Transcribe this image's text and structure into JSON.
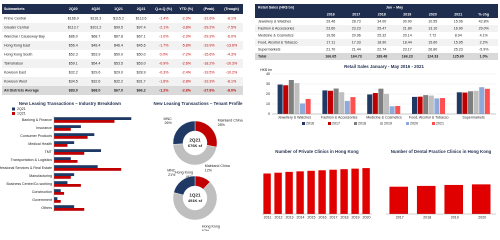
{
  "rent_table": {
    "header_color": "#1f2d4e",
    "stripe_color": "#f2f2f2",
    "total_color": "#d9d9d9",
    "percent_color": "#c00000",
    "columns": [
      "Submarkets",
      "2Q20",
      "4Q20",
      "1Q21",
      "2Q21",
      "Q-o-Q (%)",
      "YTD (%)",
      "(Peak)",
      "(Trough)"
    ],
    "rows": [
      [
        "Prime Central",
        "$166.0",
        "$116.3",
        "$115.2",
        "$113.6",
        "-1.4%",
        "-2.3%",
        "-31.6%",
        "-8.1%"
      ],
      [
        "Greater Central",
        "$113.7",
        "$101.2",
        "$99.5",
        "$97.4",
        "-2.1%",
        "-3.8%",
        "-29.2%",
        "-7.5%"
      ],
      [
        "Wanchai / Causeway Bay",
        "$86.0",
        "$68.7",
        "$67.8",
        "$67.1",
        "-1.0%",
        "-2.3%",
        "-29.3%",
        "-6.0%"
      ],
      [
        "Hong Kong East",
        "$56.4",
        "$48.4",
        "$46.4",
        "$45.6",
        "-1.7%",
        "-5.8%",
        "-19.9%",
        "-13.6%"
      ],
      [
        "Hong Kong South",
        "$52.3",
        "$53.9",
        "$50.0",
        "$50.0",
        "0.0%",
        "-7.2%",
        "-15.6%",
        "-4.3%"
      ],
      [
        "Tsimshatsui",
        "$59.1",
        "$54.4",
        "$53.5",
        "$53.0",
        "-0.9%",
        "-2.6%",
        "-18.2%",
        "-10.3%"
      ],
      [
        "Kowloon East",
        "$32.2",
        "$29.6",
        "$29.0",
        "$28.9",
        "-0.3%",
        "-2.4%",
        "-19.5%",
        "-10.2%"
      ],
      [
        "Kowloon West",
        "$34.5",
        "$32.6",
        "$32.2",
        "$31.7",
        "-1.6%",
        "-2.8%",
        "-19.3%",
        "-8.1%"
      ],
      [
        "All Districts Average",
        "$83.0",
        "$68.0",
        "$67.0",
        "$66.2",
        "-1.2%",
        "-2.6%",
        "-27.6%",
        "-8.0%"
      ]
    ]
  },
  "sales_table": {
    "header_color": "#1f2d4e",
    "stripe_color": "#f2f2f2",
    "total_color": "#d9d9d9",
    "title": "Retail Sales (HK$ bn)",
    "group": "Jan – May",
    "columns": [
      "2016",
      "2017",
      "2018",
      "2019",
      "2020",
      "2021",
      "% chg"
    ],
    "rows": [
      [
        "Jewellery & Watches",
        "29.46",
        "28.73",
        "34.00",
        "30.90",
        "10.55",
        "15.06",
        "42.8%"
      ],
      [
        "Fashion & Accessories",
        "23.60",
        "23.23",
        "25.47",
        "21.80",
        "13.10",
        "16.90",
        "29.0%"
      ],
      [
        "Medicine & Cosmetics",
        "19.56",
        "20.96",
        "25.32",
        "20.14",
        "7.72",
        "8.04",
        "4.1%"
      ],
      [
        "Food, Alcohol & Tobacco",
        "17.11",
        "17.33",
        "18.90",
        "18.44",
        "15.60",
        "15.95",
        "2.2%"
      ],
      [
        "Supermarkets",
        "21.70",
        "21.44",
        "22.74",
        "23.17",
        "26.80",
        "25.23",
        "-5.9%"
      ],
      [
        "Total",
        "166.65",
        "164.73",
        "189.48",
        "166.23",
        "124.33",
        "125.60",
        "1.0%"
      ]
    ]
  },
  "chart_data": [
    {
      "type": "bar",
      "title": "Retail Sales January - May 2016 - 2021",
      "y_label": "HK$ bn",
      "categories": [
        "Jewellery & Watches",
        "Fashion & Accessories",
        "Medicine & Cosmetics",
        "Food, Alcohol & Tobacco",
        "Supermarkets"
      ],
      "series": [
        {
          "name": "2016",
          "color": "#1f3864",
          "values": [
            29.46,
            23.6,
            19.56,
            17.11,
            21.7
          ]
        },
        {
          "name": "2017",
          "color": "#c00000",
          "values": [
            28.73,
            23.23,
            20.96,
            17.33,
            21.44
          ]
        },
        {
          "name": "2018",
          "color": "#7f7f7f",
          "values": [
            34.0,
            25.47,
            25.32,
            18.9,
            22.74
          ]
        },
        {
          "name": "2019",
          "color": "#bfbfbf",
          "values": [
            30.9,
            21.8,
            20.14,
            18.44,
            23.17
          ]
        },
        {
          "name": "2020",
          "color": "#8eaadb",
          "values": [
            10.55,
            13.1,
            7.72,
            15.6,
            26.8
          ]
        },
        {
          "name": "2021",
          "color": "#ff5050",
          "values": [
            15.06,
            16.9,
            8.04,
            15.95,
            25.23
          ]
        }
      ],
      "ylim": [
        0,
        40
      ],
      "yticks": [
        0,
        10,
        20,
        30,
        40
      ],
      "grid": true
    },
    {
      "type": "hbar",
      "title": "New Leasing Transactions – Industry Breakdown",
      "categories": [
        "Banking & Finance",
        "Insurance",
        "Consumer Products",
        "Medical Health",
        "TMT",
        "Transportation & Logistics",
        "Professional Services & Real Estate",
        "Manufacturing",
        "Business Centre/Co-working",
        "Construction",
        "Government",
        "Others"
      ],
      "series": [
        {
          "name": "2Q21",
          "color": "#1f3864",
          "values": [
            23,
            8,
            12,
            6,
            14,
            5,
            13,
            6,
            4,
            2,
            1,
            6
          ]
        },
        {
          "name": "1Q21",
          "color": "#c00000",
          "values": [
            18,
            5,
            10,
            4,
            9,
            7,
            20,
            5,
            8,
            3,
            2,
            9
          ]
        }
      ],
      "xlim": [
        0,
        25
      ]
    },
    {
      "type": "donut",
      "title": "New Leasing Transactions – Tenant Profile",
      "center_label": "2Q21",
      "total_label": "676K sf",
      "categories": [
        "Mainland China",
        "Hong Kong",
        "MNC"
      ],
      "values": [
        28,
        46,
        26
      ],
      "value_labels": [
        "28%",
        "46%",
        "26%"
      ],
      "colors": [
        "#c00000",
        "#bfbfbf",
        "#1f3864"
      ]
    },
    {
      "type": "donut",
      "center_label": "1Q21",
      "total_label": "491K sf",
      "categories": [
        "Mainland China",
        "Hong Kong",
        "MNC"
      ],
      "values": [
        12,
        67,
        21
      ],
      "value_labels": [
        "12%",
        "67%",
        "21%"
      ],
      "colors": [
        "#c00000",
        "#bfbfbf",
        "#1f3864"
      ]
    },
    {
      "type": "bar",
      "title": "Number of Private Clinics in Hong Kong",
      "categories": [
        "2011",
        "2012",
        "2013",
        "2014",
        "2015",
        "2016",
        "2017",
        "2018",
        "2019",
        "2020"
      ],
      "values": [
        1500,
        1530,
        1560,
        1580,
        1600,
        1620,
        1640,
        1660,
        1680,
        1700
      ],
      "color": "#e00000",
      "ylim": [
        0,
        2000
      ]
    },
    {
      "type": "bar",
      "title": "Number of Dental Practice Clinics in Hong Kong",
      "categories": [
        "2017",
        "2018",
        "2019",
        "2020"
      ],
      "values": [
        700,
        720,
        745,
        760
      ],
      "color": "#e00000",
      "ylim": [
        0,
        1000
      ]
    }
  ]
}
